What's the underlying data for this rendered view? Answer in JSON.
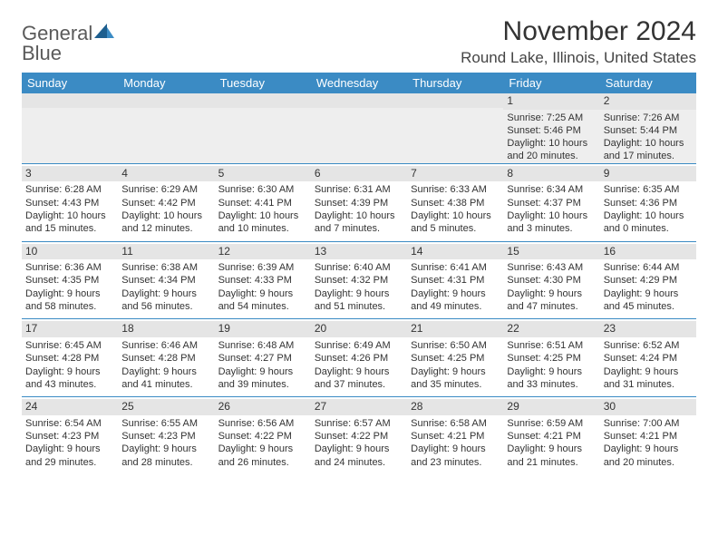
{
  "logo": {
    "line1": "General",
    "line2": "Blue"
  },
  "title": "November 2024",
  "location": "Round Lake, Illinois, United States",
  "colors": {
    "header_bg": "#3b8bc4",
    "header_text": "#ffffff",
    "rule": "#3b8bc4",
    "gray_strip": "#e5e5e5",
    "text": "#333333",
    "logo_gray": "#5a5a5a",
    "logo_blue": "#2a7ab8"
  },
  "day_headers": [
    "Sunday",
    "Monday",
    "Tuesday",
    "Wednesday",
    "Thursday",
    "Friday",
    "Saturday"
  ],
  "weeks": [
    [
      null,
      null,
      null,
      null,
      null,
      {
        "n": "1",
        "sr": "Sunrise: 7:25 AM",
        "ss": "Sunset: 5:46 PM",
        "dl1": "Daylight: 10 hours",
        "dl2": "and 20 minutes."
      },
      {
        "n": "2",
        "sr": "Sunrise: 7:26 AM",
        "ss": "Sunset: 5:44 PM",
        "dl1": "Daylight: 10 hours",
        "dl2": "and 17 minutes."
      }
    ],
    [
      {
        "n": "3",
        "sr": "Sunrise: 6:28 AM",
        "ss": "Sunset: 4:43 PM",
        "dl1": "Daylight: 10 hours",
        "dl2": "and 15 minutes."
      },
      {
        "n": "4",
        "sr": "Sunrise: 6:29 AM",
        "ss": "Sunset: 4:42 PM",
        "dl1": "Daylight: 10 hours",
        "dl2": "and 12 minutes."
      },
      {
        "n": "5",
        "sr": "Sunrise: 6:30 AM",
        "ss": "Sunset: 4:41 PM",
        "dl1": "Daylight: 10 hours",
        "dl2": "and 10 minutes."
      },
      {
        "n": "6",
        "sr": "Sunrise: 6:31 AM",
        "ss": "Sunset: 4:39 PM",
        "dl1": "Daylight: 10 hours",
        "dl2": "and 7 minutes."
      },
      {
        "n": "7",
        "sr": "Sunrise: 6:33 AM",
        "ss": "Sunset: 4:38 PM",
        "dl1": "Daylight: 10 hours",
        "dl2": "and 5 minutes."
      },
      {
        "n": "8",
        "sr": "Sunrise: 6:34 AM",
        "ss": "Sunset: 4:37 PM",
        "dl1": "Daylight: 10 hours",
        "dl2": "and 3 minutes."
      },
      {
        "n": "9",
        "sr": "Sunrise: 6:35 AM",
        "ss": "Sunset: 4:36 PM",
        "dl1": "Daylight: 10 hours",
        "dl2": "and 0 minutes."
      }
    ],
    [
      {
        "n": "10",
        "sr": "Sunrise: 6:36 AM",
        "ss": "Sunset: 4:35 PM",
        "dl1": "Daylight: 9 hours",
        "dl2": "and 58 minutes."
      },
      {
        "n": "11",
        "sr": "Sunrise: 6:38 AM",
        "ss": "Sunset: 4:34 PM",
        "dl1": "Daylight: 9 hours",
        "dl2": "and 56 minutes."
      },
      {
        "n": "12",
        "sr": "Sunrise: 6:39 AM",
        "ss": "Sunset: 4:33 PM",
        "dl1": "Daylight: 9 hours",
        "dl2": "and 54 minutes."
      },
      {
        "n": "13",
        "sr": "Sunrise: 6:40 AM",
        "ss": "Sunset: 4:32 PM",
        "dl1": "Daylight: 9 hours",
        "dl2": "and 51 minutes."
      },
      {
        "n": "14",
        "sr": "Sunrise: 6:41 AM",
        "ss": "Sunset: 4:31 PM",
        "dl1": "Daylight: 9 hours",
        "dl2": "and 49 minutes."
      },
      {
        "n": "15",
        "sr": "Sunrise: 6:43 AM",
        "ss": "Sunset: 4:30 PM",
        "dl1": "Daylight: 9 hours",
        "dl2": "and 47 minutes."
      },
      {
        "n": "16",
        "sr": "Sunrise: 6:44 AM",
        "ss": "Sunset: 4:29 PM",
        "dl1": "Daylight: 9 hours",
        "dl2": "and 45 minutes."
      }
    ],
    [
      {
        "n": "17",
        "sr": "Sunrise: 6:45 AM",
        "ss": "Sunset: 4:28 PM",
        "dl1": "Daylight: 9 hours",
        "dl2": "and 43 minutes."
      },
      {
        "n": "18",
        "sr": "Sunrise: 6:46 AM",
        "ss": "Sunset: 4:28 PM",
        "dl1": "Daylight: 9 hours",
        "dl2": "and 41 minutes."
      },
      {
        "n": "19",
        "sr": "Sunrise: 6:48 AM",
        "ss": "Sunset: 4:27 PM",
        "dl1": "Daylight: 9 hours",
        "dl2": "and 39 minutes."
      },
      {
        "n": "20",
        "sr": "Sunrise: 6:49 AM",
        "ss": "Sunset: 4:26 PM",
        "dl1": "Daylight: 9 hours",
        "dl2": "and 37 minutes."
      },
      {
        "n": "21",
        "sr": "Sunrise: 6:50 AM",
        "ss": "Sunset: 4:25 PM",
        "dl1": "Daylight: 9 hours",
        "dl2": "and 35 minutes."
      },
      {
        "n": "22",
        "sr": "Sunrise: 6:51 AM",
        "ss": "Sunset: 4:25 PM",
        "dl1": "Daylight: 9 hours",
        "dl2": "and 33 minutes."
      },
      {
        "n": "23",
        "sr": "Sunrise: 6:52 AM",
        "ss": "Sunset: 4:24 PM",
        "dl1": "Daylight: 9 hours",
        "dl2": "and 31 minutes."
      }
    ],
    [
      {
        "n": "24",
        "sr": "Sunrise: 6:54 AM",
        "ss": "Sunset: 4:23 PM",
        "dl1": "Daylight: 9 hours",
        "dl2": "and 29 minutes."
      },
      {
        "n": "25",
        "sr": "Sunrise: 6:55 AM",
        "ss": "Sunset: 4:23 PM",
        "dl1": "Daylight: 9 hours",
        "dl2": "and 28 minutes."
      },
      {
        "n": "26",
        "sr": "Sunrise: 6:56 AM",
        "ss": "Sunset: 4:22 PM",
        "dl1": "Daylight: 9 hours",
        "dl2": "and 26 minutes."
      },
      {
        "n": "27",
        "sr": "Sunrise: 6:57 AM",
        "ss": "Sunset: 4:22 PM",
        "dl1": "Daylight: 9 hours",
        "dl2": "and 24 minutes."
      },
      {
        "n": "28",
        "sr": "Sunrise: 6:58 AM",
        "ss": "Sunset: 4:21 PM",
        "dl1": "Daylight: 9 hours",
        "dl2": "and 23 minutes."
      },
      {
        "n": "29",
        "sr": "Sunrise: 6:59 AM",
        "ss": "Sunset: 4:21 PM",
        "dl1": "Daylight: 9 hours",
        "dl2": "and 21 minutes."
      },
      {
        "n": "30",
        "sr": "Sunrise: 7:00 AM",
        "ss": "Sunset: 4:21 PM",
        "dl1": "Daylight: 9 hours",
        "dl2": "and 20 minutes."
      }
    ]
  ]
}
